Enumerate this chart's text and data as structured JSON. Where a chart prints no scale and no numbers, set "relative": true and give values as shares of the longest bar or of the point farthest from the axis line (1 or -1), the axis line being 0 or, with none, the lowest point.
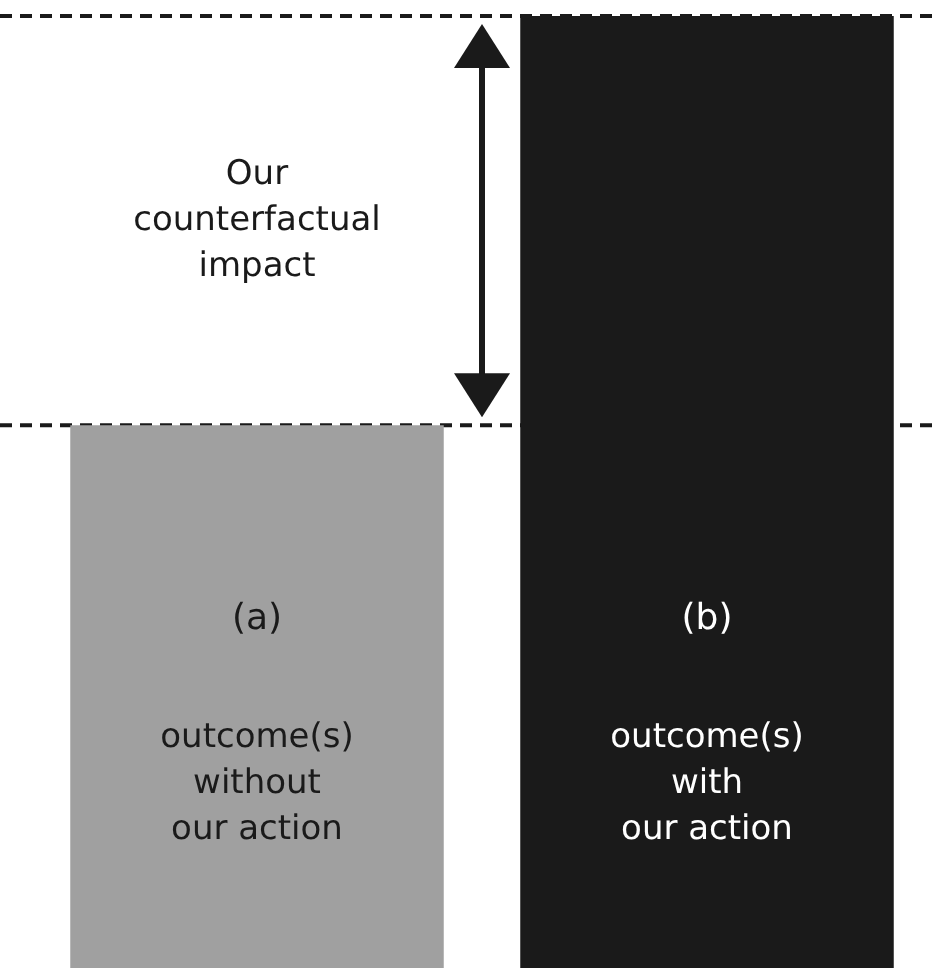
{
  "chart_data": {
    "type": "bar",
    "relative": true,
    "categories": [
      "(a)",
      "(b)"
    ],
    "values": [
      0.57,
      1
    ],
    "colors": [
      "#a0a0a0",
      "#1a1a1a"
    ],
    "ref_lines": [
      {
        "axis": "y",
        "value": 0.57,
        "line_style": "dashed",
        "color": "#1a1a1a"
      },
      {
        "axis": "y",
        "value": 1,
        "line_style": "dashed",
        "color": "#1a1a1a"
      }
    ],
    "annotations": [
      "Our\ncounterfactual\nimpact",
      "outcome(s)\nwithout\nour action",
      "outcome(s)\nwith\nour action"
    ]
  }
}
